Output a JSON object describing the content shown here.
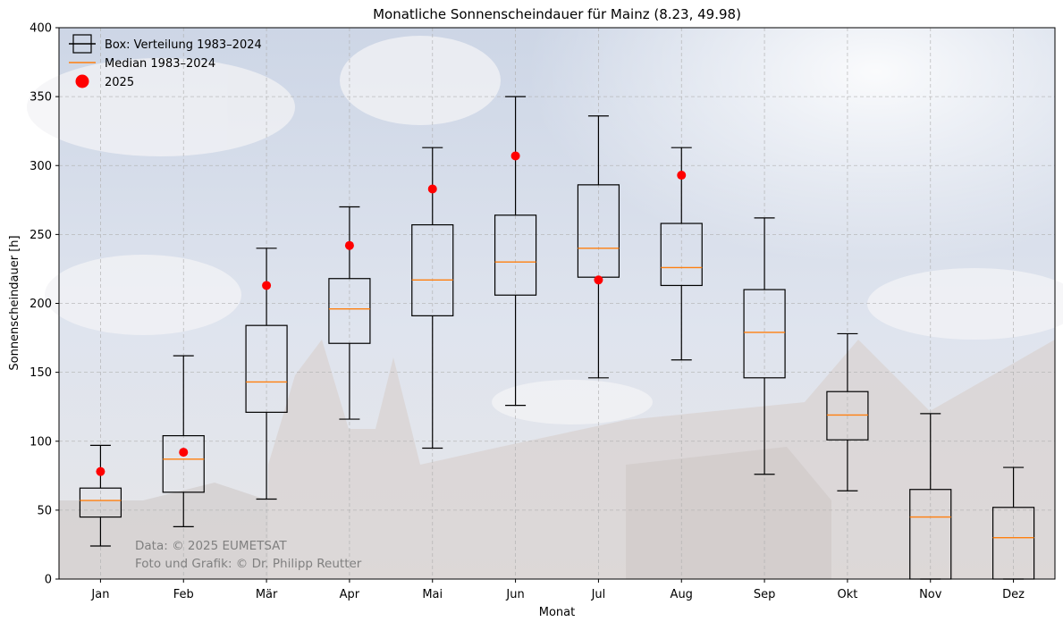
{
  "chart_data": {
    "type": "box",
    "title": "Monatliche Sonnenscheindauer für Mainz (8.23, 49.98)",
    "xlabel": "Monat",
    "ylabel": "Sonnenscheindauer [h]",
    "ylim": [
      0,
      400
    ],
    "yticks": [
      0,
      50,
      100,
      150,
      200,
      250,
      300,
      350,
      400
    ],
    "grid": true,
    "legend_position": "top-left",
    "legend": [
      {
        "label": "Box: Verteilung 1983–2024",
        "kind": "box"
      },
      {
        "label": "Median 1983–2024",
        "kind": "median"
      },
      {
        "label": "2025",
        "kind": "point"
      }
    ],
    "categories": [
      "Jan",
      "Feb",
      "Mär",
      "Apr",
      "Mai",
      "Jun",
      "Jul",
      "Aug",
      "Sep",
      "Okt",
      "Nov",
      "Dez"
    ],
    "boxes": [
      {
        "whislo": 24,
        "q1": 45,
        "med": 57,
        "q3": 66,
        "whishi": 97
      },
      {
        "whislo": 38,
        "q1": 63,
        "med": 87,
        "q3": 104,
        "whishi": 162
      },
      {
        "whislo": 58,
        "q1": 121,
        "med": 143,
        "q3": 184,
        "whishi": 240
      },
      {
        "whislo": 116,
        "q1": 171,
        "med": 196,
        "q3": 218,
        "whishi": 270
      },
      {
        "whislo": 95,
        "q1": 191,
        "med": 217,
        "q3": 257,
        "whishi": 313
      },
      {
        "whislo": 126,
        "q1": 206,
        "med": 230,
        "q3": 264,
        "whishi": 350
      },
      {
        "whislo": 146,
        "q1": 219,
        "med": 240,
        "q3": 286,
        "whishi": 336
      },
      {
        "whislo": 159,
        "q1": 213,
        "med": 226,
        "q3": 258,
        "whishi": 313
      },
      {
        "whislo": 76,
        "q1": 146,
        "med": 179,
        "q3": 210,
        "whishi": 262
      },
      {
        "whislo": 64,
        "q1": 101,
        "med": 119,
        "q3": 136,
        "whishi": 178
      },
      {
        "whislo": 0,
        "q1": 0,
        "med": 45,
        "q3": 65,
        "whishi": 120
      },
      {
        "whislo": 0,
        "q1": 0,
        "med": 30,
        "q3": 52,
        "whishi": 81
      }
    ],
    "points_2025": [
      {
        "month": "Jan",
        "value": 78
      },
      {
        "month": "Feb",
        "value": 92
      },
      {
        "month": "Mär",
        "value": 213
      },
      {
        "month": "Apr",
        "value": 242
      },
      {
        "month": "Mai",
        "value": 283
      },
      {
        "month": "Jun",
        "value": 307
      },
      {
        "month": "Jul",
        "value": 217
      },
      {
        "month": "Aug",
        "value": 293
      }
    ],
    "annotations": [
      "Data: © 2025 EUMETSAT",
      "Foto und Grafik: © Dr. Philipp Reutter"
    ],
    "colors": {
      "box": "#000000",
      "median": "#ff7f0e",
      "point": "#ff0000",
      "grid": "#b0b0b0",
      "annotation": "#808080"
    }
  }
}
